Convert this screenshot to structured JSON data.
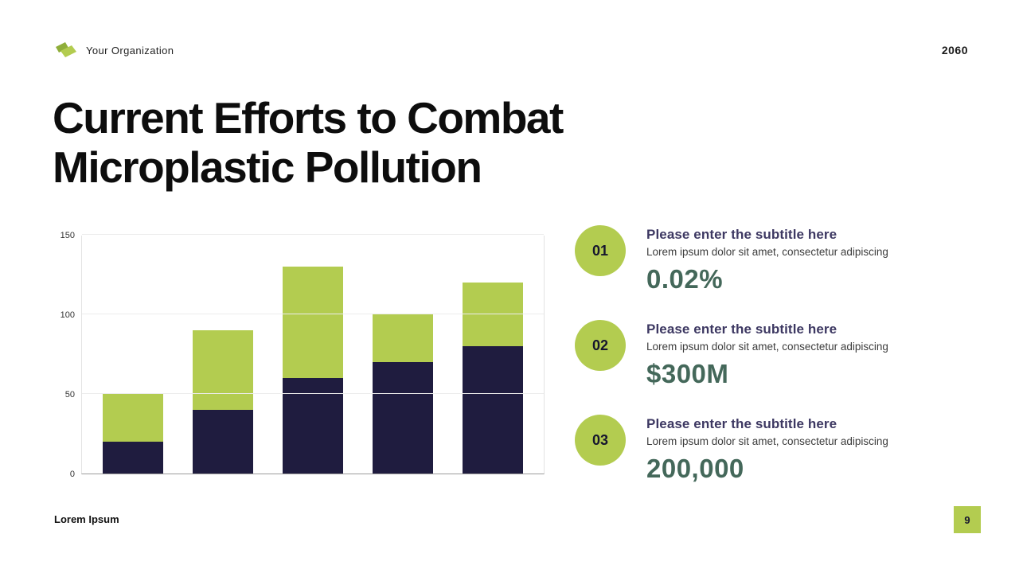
{
  "header": {
    "org_name": "Your Organization",
    "year": "2060"
  },
  "title": "Current Efforts to Combat Microplastic Pollution",
  "colors": {
    "accent_green": "#b3cc50",
    "logo_dark_green": "#8fae3a",
    "bar_navy": "#1f1c3f",
    "bar_green": "#b3cc50",
    "stat_value_green": "#44685a",
    "stat_title_purple": "#3d3862"
  },
  "chart_data": {
    "type": "bar",
    "stacked": true,
    "categories": [
      "",
      "",
      "",
      "",
      ""
    ],
    "series": [
      {
        "name": "bottom-segment",
        "color": "#1f1c3f",
        "values": [
          20,
          40,
          60,
          70,
          80
        ]
      },
      {
        "name": "top-segment",
        "color": "#b3cc50",
        "values": [
          30,
          50,
          70,
          30,
          40
        ]
      }
    ],
    "totals": [
      50,
      90,
      130,
      100,
      120
    ],
    "title": "",
    "xlabel": "",
    "ylabel": "",
    "ylim": [
      0,
      150
    ],
    "yticks": [
      0,
      50,
      100,
      150
    ],
    "grid": true,
    "legend": false
  },
  "stats": [
    {
      "number": "01",
      "title": "Please enter the subtitle here",
      "description": "Lorem ipsum dolor sit amet, consectetur adipiscing",
      "value": "0.02%"
    },
    {
      "number": "02",
      "title": "Please enter the subtitle here",
      "description": "Lorem ipsum dolor sit amet, consectetur adipiscing",
      "value": "$300M"
    },
    {
      "number": "03",
      "title": "Please enter the subtitle here",
      "description": "Lorem ipsum dolor sit amet, consectetur adipiscing",
      "value": "200,000"
    }
  ],
  "footer": {
    "left_text": "Lorem Ipsum",
    "page_number": "9"
  }
}
